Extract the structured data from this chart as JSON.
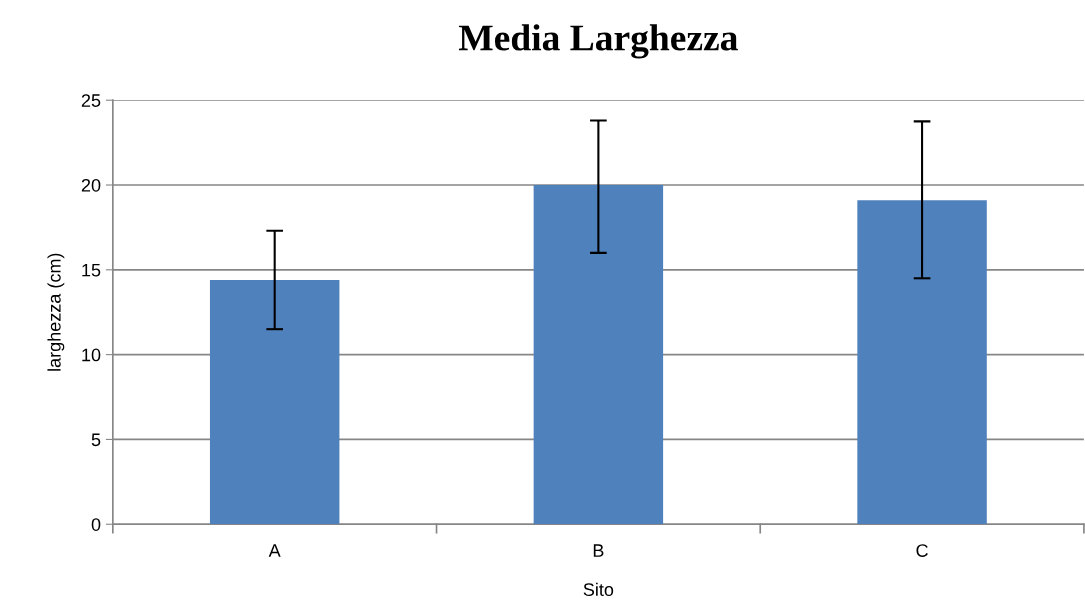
{
  "chart_data": {
    "type": "bar",
    "title": "Media Larghezza",
    "xlabel": "Sito",
    "ylabel": "larghezza (cm)",
    "categories": [
      "A",
      "B",
      "C"
    ],
    "values": [
      14.4,
      20.0,
      19.1
    ],
    "errors": [
      [
        11.5,
        17.3
      ],
      [
        16.0,
        23.8
      ],
      [
        14.5,
        23.75
      ]
    ],
    "color": "#4f81bd",
    "ylim": [
      0,
      25
    ],
    "yticks": [
      0,
      5,
      10,
      15,
      20,
      25
    ],
    "grid": "y",
    "legend": false
  }
}
